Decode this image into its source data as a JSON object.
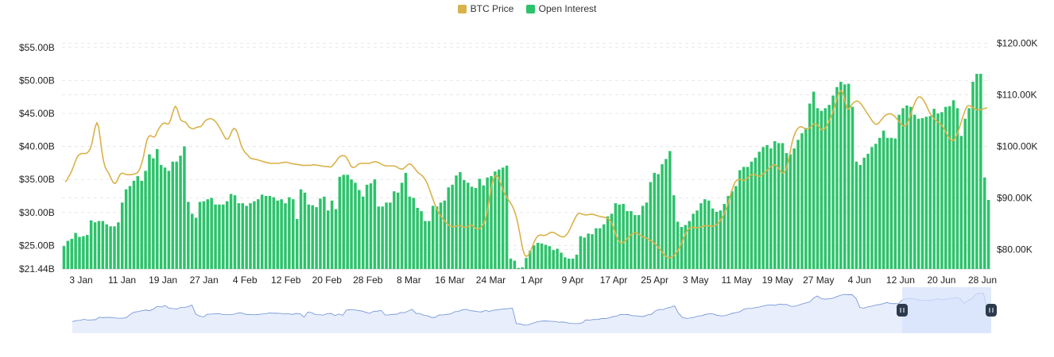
{
  "legend": {
    "btc_label": "BTC Price",
    "oi_label": "Open Interest"
  },
  "colors": {
    "oi": "#2dc26b",
    "btc": "#d9b24a",
    "grid": "#e8e8e8",
    "zoom_fill": "#e8eefb",
    "zoom_line": "#6b8fd6",
    "zoom_selected": "#d7e2fb",
    "handle": "#2c3a4d"
  },
  "chart_data": {
    "type": "bar",
    "title": "",
    "x_ticks": [
      "3 Jan",
      "11 Jan",
      "19 Jan",
      "27 Jan",
      "4 Feb",
      "12 Feb",
      "20 Feb",
      "28 Feb",
      "8 Mar",
      "16 Mar",
      "24 Mar",
      "1 Apr",
      "9 Apr",
      "17 Apr",
      "25 Apr",
      "3 May",
      "11 May",
      "19 May",
      "27 May",
      "4 Jun",
      "12 Jun",
      "20 Jun",
      "28 Jun"
    ],
    "left_axis": {
      "ticks": [
        "$55.00B",
        "$50.00B",
        "$45.00B",
        "$40.00B",
        "$35.00B",
        "$30.00B",
        "$25.00B"
      ],
      "tick_values": [
        55,
        50,
        45,
        40,
        35,
        30,
        25
      ],
      "min_label": "$21.44B",
      "ylim": [
        21.44,
        57.5
      ]
    },
    "right_axis": {
      "ticks": [
        "$120.00K",
        "$110.00K",
        "$100.00K",
        "$90.00K",
        "$80.00K"
      ],
      "tick_values": [
        120,
        110,
        100,
        90,
        80
      ],
      "ylim": [
        76.2,
        122.4
      ]
    },
    "series": [
      {
        "name": "Open Interest",
        "axis": "left",
        "type": "bar",
        "values": [
          24.9,
          25.7,
          26.0,
          26.9,
          26.3,
          26.4,
          26.6,
          28.8,
          28.5,
          28.7,
          28.7,
          28.2,
          27.9,
          27.9,
          28.5,
          31.5,
          33.5,
          34.0,
          34.8,
          35.5,
          34.8,
          36.3,
          38.8,
          38.2,
          39.6,
          37.2,
          36.8,
          36.3,
          37.7,
          37.7,
          38.6,
          40.0,
          31.6,
          29.8,
          29.2,
          31.6,
          31.7,
          32.0,
          32.2,
          31.2,
          31.2,
          31.2,
          31.7,
          32.8,
          32.6,
          31.4,
          31.4,
          31.0,
          31.4,
          31.7,
          32.0,
          32.7,
          32.5,
          32.5,
          32.3,
          31.8,
          32.0,
          31.4,
          32.3,
          32.0,
          29.0,
          33.5,
          33.0,
          31.2,
          31.1,
          30.8,
          32.1,
          32.4,
          30.3,
          31.8,
          30.5,
          35.4,
          35.7,
          35.7,
          35.0,
          34.5,
          33.4,
          32.4,
          34.2,
          34.4,
          35.0,
          30.9,
          30.9,
          31.5,
          31.5,
          33.2,
          33.0,
          34.5,
          36.0,
          32.4,
          32.2,
          30.7,
          30.2,
          28.7,
          28.7,
          31.0,
          30.9,
          31.5,
          31.8,
          33.8,
          34.2,
          35.6,
          36.1,
          34.9,
          34.5,
          33.9,
          33.7,
          35.1,
          34.1,
          35.3,
          35.5,
          36.2,
          36.5,
          36.8,
          37.1,
          23.0,
          22.7,
          21.6,
          21.7,
          23.1,
          24.2,
          25.0,
          25.4,
          25.3,
          25.1,
          24.9,
          24.3,
          24.5,
          23.9,
          23.2,
          23.0,
          23.0,
          23.6,
          26.4,
          26.2,
          26.8,
          26.7,
          27.6,
          27.6,
          28.2,
          29.4,
          29.8,
          31.4,
          31.2,
          31.3,
          30.2,
          30.2,
          29.6,
          29.6,
          31.0,
          31.5,
          34.6,
          36.0,
          35.8,
          37.3,
          38.1,
          39.3,
          32.6,
          28.6,
          27.8,
          28.1,
          28.7,
          29.8,
          30.3,
          31.4,
          32.0,
          31.8,
          30.6,
          30.1,
          30.3,
          31.3,
          32.5,
          33.2,
          34.0,
          36.4,
          36.9,
          36.9,
          37.7,
          38.3,
          39.2,
          39.9,
          40.2,
          39.7,
          40.8,
          40.5,
          40.5,
          39.0,
          38.8,
          39.7,
          41.0,
          42.0,
          42.8,
          46.5,
          48.3,
          45.8,
          45.4,
          45.8,
          46.3,
          47.7,
          49.0,
          49.8,
          49.4,
          49.5,
          46.0,
          37.7,
          37.2,
          38.3,
          38.9,
          39.9,
          40.4,
          41.3,
          42.4,
          41.3,
          41.3,
          41.2,
          44.8,
          45.8,
          46.2,
          46.0,
          44.8,
          44.2,
          44.3,
          44.5,
          44.6,
          45.7,
          45.0,
          45.2,
          46.0,
          46.1,
          47.0,
          45.8,
          41.6,
          44.2,
          45.8,
          49.8,
          51.0,
          51.0,
          35.3,
          31.9
        ]
      },
      {
        "name": "BTC Price",
        "axis": "right",
        "type": "line",
        "values": [
          93.1,
          93.4,
          94.1,
          94.6,
          95.3,
          96.1,
          97.0,
          97.8,
          98.3,
          98.5,
          98.6,
          98.6,
          98.6,
          98.7,
          99.0,
          99.5,
          100.6,
          102.2,
          103.8,
          104.6,
          103.8,
          101.5,
          99.0,
          97.1,
          95.9,
          95.3,
          94.8,
          94.1,
          93.4,
          92.9,
          92.8,
          93.2,
          94.0,
          94.6,
          94.8,
          94.7,
          94.6,
          94.5,
          94.5,
          94.5,
          94.5,
          94.6,
          94.7,
          94.8,
          95.2,
          95.9,
          96.9,
          98.2,
          99.9,
          101.3,
          101.9,
          102.1,
          101.9,
          101.8,
          102.0,
          102.8,
          103.4,
          103.9,
          104.3,
          104.5,
          104.5,
          104.3,
          104.4,
          105.0,
          106.1,
          107.2,
          107.8,
          107.3,
          106.2,
          105.2,
          104.9,
          104.8,
          104.7,
          104.3,
          103.8,
          103.6,
          103.4,
          103.4,
          103.6,
          103.7,
          103.8,
          103.8,
          104.1,
          104.6,
          105.0,
          105.2,
          105.3,
          105.4,
          105.3,
          105.1,
          104.8,
          104.4,
          103.9,
          103.3,
          102.7,
          102.1,
          101.5,
          101.4,
          101.6,
          102.3,
          103.1,
          103.5,
          103.3,
          102.7,
          101.7,
          100.6,
          99.7,
          99.1,
          98.7,
          98.4,
          98.0,
          97.7,
          97.6,
          97.5,
          97.5,
          97.4,
          97.3,
          97.2,
          97.1,
          97.0,
          96.9,
          96.8,
          96.8,
          96.7,
          96.7,
          96.7,
          96.7,
          96.7,
          96.7,
          96.8,
          96.8,
          96.9,
          96.9,
          96.9,
          96.8,
          96.7,
          96.6,
          96.6,
          96.5,
          96.5,
          96.4,
          96.4,
          96.3,
          96.3,
          96.3,
          96.3,
          96.3,
          96.3,
          96.4,
          96.4,
          96.4,
          96.3,
          96.3,
          96.2,
          96.2,
          96.1,
          96.1,
          96.1,
          96.0,
          96.0,
          96.2,
          96.6,
          97.0,
          97.5,
          97.9,
          98.1,
          98.2,
          98.2,
          98.0,
          97.5,
          96.9,
          96.2,
          95.9,
          95.9,
          96.1,
          96.4,
          96.6,
          96.7,
          96.7,
          96.7,
          96.7,
          96.7,
          96.7,
          96.8,
          96.9,
          97.0,
          97.0,
          96.9,
          96.8,
          96.6,
          96.4,
          96.3,
          96.2,
          96.2,
          96.2,
          96.2,
          96.2,
          96.2,
          96.1,
          95.9,
          95.7,
          95.6,
          95.6,
          95.8,
          96.1,
          96.4,
          96.6,
          96.5,
          96.2,
          95.8,
          95.4,
          95.0,
          94.7,
          94.5,
          94.2,
          93.8,
          93.3,
          92.6,
          91.7,
          90.8,
          89.9,
          89.0,
          88.2,
          87.5,
          86.9,
          86.4,
          86.0,
          85.6,
          85.2,
          84.9,
          84.6,
          84.5,
          84.4,
          84.4,
          84.5,
          84.6,
          84.6,
          84.5,
          84.4,
          84.3,
          84.3,
          84.4,
          84.6,
          84.7,
          84.6,
          84.3,
          84.0,
          83.9,
          84.0,
          84.3,
          84.7,
          85.3,
          86.4,
          88.0,
          90.0,
          91.9,
          93.3,
          94.1,
          94.4,
          94.1,
          93.4,
          92.5,
          91.6,
          90.9,
          90.3,
          89.8,
          89.3,
          88.8,
          88.2,
          87.4,
          86.4,
          85.0,
          83.4,
          81.6,
          80.0,
          79.0,
          78.6,
          78.8,
          79.3,
          80.0,
          80.8,
          81.6,
          82.2,
          82.6,
          82.8,
          82.8,
          82.7,
          82.7,
          82.8,
          83.0,
          83.2,
          83.3,
          83.3,
          83.2,
          83.0,
          82.8,
          82.6,
          82.5,
          82.4,
          82.5,
          82.8,
          83.2,
          83.8,
          84.5,
          85.2,
          85.9,
          86.5,
          86.9,
          87.0,
          86.9,
          86.8,
          86.7,
          86.7,
          86.7,
          86.8,
          86.8,
          86.8,
          86.7,
          86.6,
          86.5,
          86.4,
          86.3,
          86.3,
          86.2,
          86.1,
          86.0,
          85.7,
          85.2,
          84.4,
          83.5,
          82.6,
          81.8,
          81.4,
          81.2,
          81.3,
          81.6,
          81.9,
          82.3,
          82.6,
          82.9,
          83.1,
          83.2,
          83.2,
          83.0,
          82.8,
          82.6,
          82.4,
          82.3,
          82.2,
          82.0,
          81.8,
          81.6,
          81.4,
          81.1,
          80.8,
          80.4,
          80.0,
          79.6,
          79.2,
          78.8,
          78.6,
          78.4,
          78.4,
          78.5,
          78.7,
          79.0,
          79.4,
          79.9,
          80.5,
          81.2,
          82.0,
          82.8,
          83.4,
          83.9,
          84.2,
          84.3,
          84.3,
          84.2,
          84.2,
          84.2,
          84.3,
          84.4,
          84.5,
          84.6,
          84.6,
          84.6,
          84.5,
          84.5,
          84.5,
          84.6,
          84.8,
          85.1,
          85.5,
          86.0,
          86.6,
          87.3,
          88.1,
          89.1,
          90.2,
          91.3,
          92.3,
          93.0,
          93.4,
          93.6,
          93.6,
          93.5,
          93.4,
          93.5,
          93.7,
          94.0,
          94.3,
          94.5,
          94.6,
          94.5,
          94.3,
          94.2,
          94.2,
          94.4,
          94.7,
          95.0,
          95.3,
          95.6,
          95.9,
          96.2,
          96.4,
          96.4,
          96.2,
          95.8,
          95.3,
          94.9,
          94.8,
          95.1,
          96.0,
          97.3,
          98.9,
          100.5,
          101.7,
          102.6,
          103.2,
          103.6,
          103.8,
          103.8,
          103.6,
          103.4,
          103.3,
          103.4,
          103.7,
          104.0,
          104.3,
          104.4,
          104.2,
          103.9,
          103.5,
          103.2,
          103.2,
          103.5,
          104.0,
          104.7,
          105.4,
          106.2,
          107.1,
          108.1,
          109.2,
          110.2,
          110.8,
          110.7,
          109.9,
          108.6,
          107.5,
          107.2,
          107.6,
          108.1,
          108.5,
          108.7,
          108.8,
          108.7,
          108.4,
          108.0,
          107.5,
          107.0,
          106.5,
          106.0,
          105.5,
          105.0,
          104.6,
          104.3,
          104.3,
          104.5,
          104.9,
          105.3,
          105.7,
          106.0,
          106.2,
          106.3,
          106.3,
          106.2,
          106.0,
          105.7,
          105.3,
          104.9,
          104.5,
          104.1,
          103.9,
          104.0,
          104.4,
          105.1,
          106.0,
          107.0,
          107.9,
          108.7,
          109.3,
          109.6,
          109.6,
          109.3,
          108.9,
          108.3,
          107.6,
          106.9,
          106.3,
          105.8,
          105.4,
          105.1,
          104.8,
          104.6,
          104.3,
          104.0,
          103.5,
          102.9,
          102.3,
          101.7,
          101.3,
          101.1,
          101.2,
          101.7,
          102.4,
          103.3,
          104.3,
          105.3,
          106.3,
          107.2,
          107.8,
          107.9,
          107.8,
          107.6,
          107.4,
          107.2,
          107.1,
          107.1,
          107.1,
          107.2,
          107.3,
          107.4,
          107.5
        ]
      }
    ],
    "grid": true,
    "legend_position": "top-center"
  }
}
